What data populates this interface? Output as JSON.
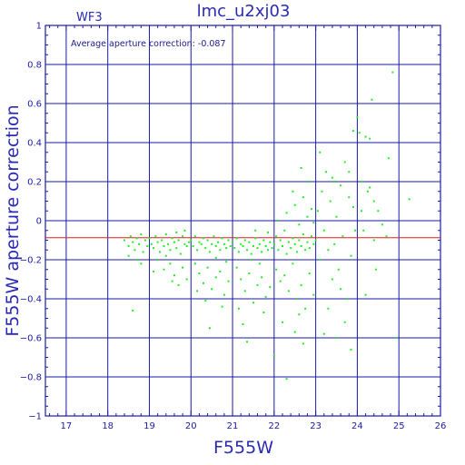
{
  "chart_data": {
    "type": "scatter",
    "title": "lmc_u2xj03",
    "instrument_label": "WF3",
    "annotation": "Average aperture correction: -0.087",
    "xlabel": "F555W",
    "ylabel": "F555W aperture correction",
    "xlim": [
      16.5,
      26
    ],
    "ylim": [
      -1,
      1
    ],
    "x_ticks": [
      17,
      18,
      19,
      20,
      21,
      22,
      23,
      24,
      25,
      26
    ],
    "y_ticks": [
      -1,
      -0.8,
      -0.6,
      -0.4,
      -0.2,
      0,
      0.2,
      0.4,
      0.6,
      0.8,
      1
    ],
    "y_tick_labels": [
      "−1",
      "−0.8",
      "−0.6",
      "−0.4",
      "−0.2",
      "0",
      "0.2",
      "0.4",
      "0.6",
      "0.8",
      "1"
    ],
    "grid": true,
    "reference_line": {
      "y": -0.087,
      "color": "#e02020"
    },
    "series": [
      {
        "color": "#22ee22",
        "points": [
          [
            18.4,
            -0.1
          ],
          [
            18.5,
            -0.13
          ],
          [
            18.55,
            -0.08
          ],
          [
            18.6,
            -0.11
          ],
          [
            18.65,
            -0.15
          ],
          [
            18.7,
            -0.09
          ],
          [
            18.75,
            -0.12
          ],
          [
            18.8,
            -0.07
          ],
          [
            18.85,
            -0.16
          ],
          [
            18.9,
            -0.1
          ],
          [
            18.95,
            -0.13
          ],
          [
            18.5,
            -0.18
          ],
          [
            18.7,
            -0.2
          ],
          [
            18.8,
            -0.22
          ],
          [
            18.6,
            -0.46
          ],
          [
            19.0,
            -0.09
          ],
          [
            19.05,
            -0.12
          ],
          [
            19.1,
            -0.14
          ],
          [
            19.15,
            -0.08
          ],
          [
            19.2,
            -0.11
          ],
          [
            19.25,
            -0.16
          ],
          [
            19.3,
            -0.1
          ],
          [
            19.35,
            -0.13
          ],
          [
            19.4,
            -0.07
          ],
          [
            19.45,
            -0.12
          ],
          [
            19.5,
            -0.15
          ],
          [
            19.55,
            -0.09
          ],
          [
            19.6,
            -0.11
          ],
          [
            19.65,
            -0.14
          ],
          [
            19.7,
            -0.1
          ],
          [
            19.75,
            -0.17
          ],
          [
            19.8,
            -0.08
          ],
          [
            19.85,
            -0.12
          ],
          [
            19.9,
            -0.13
          ],
          [
            19.95,
            -0.11
          ],
          [
            19.2,
            -0.2
          ],
          [
            19.35,
            -0.25
          ],
          [
            19.5,
            -0.22
          ],
          [
            19.6,
            -0.28
          ],
          [
            19.7,
            -0.33
          ],
          [
            19.8,
            -0.24
          ],
          [
            19.9,
            -0.3
          ],
          [
            19.4,
            -0.18
          ],
          [
            19.65,
            -0.06
          ],
          [
            19.85,
            -0.05
          ],
          [
            19.1,
            -0.26
          ],
          [
            19.55,
            -0.31
          ],
          [
            20.0,
            -0.1
          ],
          [
            20.05,
            -0.13
          ],
          [
            20.1,
            -0.08
          ],
          [
            20.15,
            -0.15
          ],
          [
            20.2,
            -0.11
          ],
          [
            20.25,
            -0.12
          ],
          [
            20.3,
            -0.09
          ],
          [
            20.35,
            -0.14
          ],
          [
            20.4,
            -0.1
          ],
          [
            20.45,
            -0.16
          ],
          [
            20.5,
            -0.12
          ],
          [
            20.55,
            -0.08
          ],
          [
            20.6,
            -0.13
          ],
          [
            20.65,
            -0.11
          ],
          [
            20.7,
            -0.15
          ],
          [
            20.75,
            -0.09
          ],
          [
            20.8,
            -0.12
          ],
          [
            20.85,
            -0.14
          ],
          [
            20.9,
            -0.1
          ],
          [
            20.95,
            -0.13
          ],
          [
            20.1,
            -0.22
          ],
          [
            20.2,
            -0.27
          ],
          [
            20.3,
            -0.32
          ],
          [
            20.4,
            -0.24
          ],
          [
            20.5,
            -0.35
          ],
          [
            20.6,
            -0.29
          ],
          [
            20.7,
            -0.26
          ],
          [
            20.8,
            -0.38
          ],
          [
            20.9,
            -0.31
          ],
          [
            20.35,
            -0.41
          ],
          [
            20.6,
            -0.19
          ],
          [
            20.45,
            -0.55
          ],
          [
            20.75,
            -0.44
          ],
          [
            20.15,
            -0.36
          ],
          [
            20.85,
            -0.21
          ],
          [
            21.0,
            -0.11
          ],
          [
            21.05,
            -0.14
          ],
          [
            21.1,
            -0.09
          ],
          [
            21.15,
            -0.16
          ],
          [
            21.2,
            -0.12
          ],
          [
            21.25,
            -0.13
          ],
          [
            21.3,
            -0.1
          ],
          [
            21.35,
            -0.15
          ],
          [
            21.4,
            -0.11
          ],
          [
            21.45,
            -0.17
          ],
          [
            21.5,
            -0.13
          ],
          [
            21.55,
            -0.09
          ],
          [
            21.6,
            -0.14
          ],
          [
            21.65,
            -0.12
          ],
          [
            21.7,
            -0.16
          ],
          [
            21.75,
            -0.1
          ],
          [
            21.8,
            -0.13
          ],
          [
            21.85,
            -0.15
          ],
          [
            21.9,
            -0.11
          ],
          [
            21.95,
            -0.14
          ],
          [
            21.1,
            -0.24
          ],
          [
            21.2,
            -0.3
          ],
          [
            21.3,
            -0.36
          ],
          [
            21.4,
            -0.27
          ],
          [
            21.5,
            -0.42
          ],
          [
            21.6,
            -0.33
          ],
          [
            21.7,
            -0.29
          ],
          [
            21.8,
            -0.39
          ],
          [
            21.9,
            -0.34
          ],
          [
            21.25,
            -0.53
          ],
          [
            21.45,
            -0.2
          ],
          [
            21.35,
            -0.62
          ],
          [
            21.65,
            -0.22
          ],
          [
            21.75,
            -0.47
          ],
          [
            21.15,
            -0.45
          ],
          [
            21.55,
            -0.05
          ],
          [
            21.85,
            -0.06
          ],
          [
            22.0,
            -0.12
          ],
          [
            22.05,
            -0.08
          ],
          [
            22.1,
            -0.15
          ],
          [
            22.15,
            -0.1
          ],
          [
            22.2,
            -0.13
          ],
          [
            22.25,
            -0.05
          ],
          [
            22.3,
            -0.17
          ],
          [
            22.35,
            -0.11
          ],
          [
            22.4,
            -0.14
          ],
          [
            22.45,
            -0.09
          ],
          [
            22.5,
            -0.12
          ],
          [
            22.55,
            -0.16
          ],
          [
            22.6,
            -0.1
          ],
          [
            22.65,
            -0.13
          ],
          [
            22.7,
            -0.07
          ],
          [
            22.75,
            -0.15
          ],
          [
            22.8,
            -0.11
          ],
          [
            22.85,
            -0.14
          ],
          [
            22.9,
            -0.08
          ],
          [
            22.95,
            -0.12
          ],
          [
            22.05,
            -0.25
          ],
          [
            22.15,
            -0.31
          ],
          [
            22.25,
            -0.28
          ],
          [
            22.35,
            -0.36
          ],
          [
            22.45,
            -0.22
          ],
          [
            22.55,
            -0.4
          ],
          [
            22.65,
            -0.33
          ],
          [
            22.75,
            -0.45
          ],
          [
            22.85,
            -0.27
          ],
          [
            22.95,
            -0.38
          ],
          [
            22.2,
            -0.52
          ],
          [
            22.5,
            -0.57
          ],
          [
            22.7,
            -0.63
          ],
          [
            22.0,
            -0.69
          ],
          [
            22.3,
            -0.81
          ],
          [
            22.6,
            -0.48
          ],
          [
            22.1,
            0.0
          ],
          [
            22.3,
            0.04
          ],
          [
            22.5,
            0.08
          ],
          [
            22.6,
            -0.02
          ],
          [
            22.7,
            0.12
          ],
          [
            22.8,
            0.02
          ],
          [
            22.9,
            0.06
          ],
          [
            22.45,
            0.15
          ],
          [
            22.65,
            0.27
          ],
          [
            22.85,
            0.2
          ],
          [
            22.95,
            -0.01
          ],
          [
            23.0,
            -0.1
          ],
          [
            23.05,
            0.05
          ],
          [
            23.1,
            -0.2
          ],
          [
            23.15,
            0.15
          ],
          [
            23.2,
            -0.05
          ],
          [
            23.25,
            0.25
          ],
          [
            23.3,
            -0.15
          ],
          [
            23.35,
            0.1
          ],
          [
            23.4,
            -0.3
          ],
          [
            23.45,
            0.2
          ],
          [
            23.5,
            0.02
          ],
          [
            23.55,
            -0.25
          ],
          [
            23.6,
            0.18
          ],
          [
            23.65,
            -0.08
          ],
          [
            23.7,
            0.3
          ],
          [
            23.75,
            -0.4
          ],
          [
            23.8,
            0.12
          ],
          [
            23.85,
            -0.18
          ],
          [
            23.9,
            0.07
          ],
          [
            23.95,
            -0.05
          ],
          [
            23.1,
            0.35
          ],
          [
            23.3,
            -0.45
          ],
          [
            23.5,
            -0.6
          ],
          [
            23.7,
            -0.52
          ],
          [
            23.85,
            -0.66
          ],
          [
            23.4,
            0.22
          ],
          [
            23.6,
            -0.35
          ],
          [
            23.9,
            0.46
          ],
          [
            23.2,
            -0.58
          ],
          [
            23.8,
            0.25
          ],
          [
            23.45,
            -0.12
          ],
          [
            24.0,
            0.53
          ],
          [
            24.05,
            0.45
          ],
          [
            24.1,
            0.2
          ],
          [
            24.15,
            -0.05
          ],
          [
            24.2,
            0.43
          ],
          [
            24.25,
            0.15
          ],
          [
            24.3,
            0.42
          ],
          [
            24.35,
            0.62
          ],
          [
            24.4,
            -0.1
          ],
          [
            24.45,
            -0.25
          ],
          [
            24.5,
            0.05
          ],
          [
            24.2,
            -0.38
          ],
          [
            24.1,
            0.05
          ],
          [
            24.3,
            0.17
          ],
          [
            24.4,
            0.1
          ],
          [
            24.6,
            -0.02
          ],
          [
            24.7,
            -0.08
          ],
          [
            24.75,
            0.32
          ],
          [
            24.85,
            0.76
          ],
          [
            24.95,
            -0.6
          ],
          [
            25.25,
            0.11
          ]
        ]
      }
    ]
  }
}
